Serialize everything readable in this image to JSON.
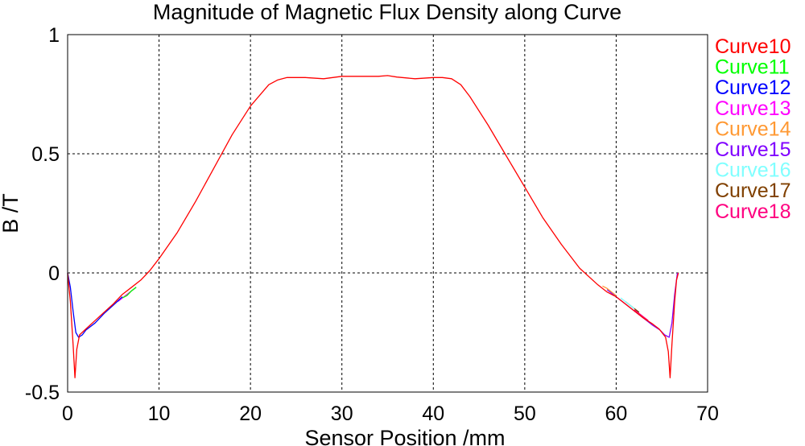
{
  "chart_data": {
    "type": "line",
    "title": "Magnitude of Magnetic Flux Density along Curve",
    "xlabel": "Sensor Position /mm",
    "ylabel": "B /T",
    "xlim": [
      0,
      70
    ],
    "ylim": [
      -0.5,
      1
    ],
    "xticks": [
      0,
      10,
      20,
      30,
      40,
      50,
      60,
      70
    ],
    "yticks": [
      -0.5,
      0,
      0.5,
      1
    ],
    "xtick_labels": [
      "0",
      "10",
      "20",
      "30",
      "40",
      "50",
      "60",
      "70"
    ],
    "ytick_labels": [
      "-0.5",
      "0",
      "0.5",
      "1"
    ],
    "grid": true,
    "legend_position": "right",
    "series": [
      {
        "name": "Curve10",
        "color": "#ff0000",
        "x": [
          0,
          0.3,
          0.6,
          0.8,
          1.0,
          1.3,
          2,
          3,
          4,
          5,
          6,
          7,
          8,
          9,
          10,
          12,
          14,
          16,
          18,
          20,
          22,
          23,
          24,
          25,
          26,
          28,
          30,
          32,
          34,
          35,
          36,
          38,
          40,
          41,
          42,
          43,
          44,
          46,
          48,
          50,
          52,
          54,
          56,
          58,
          59,
          60,
          61,
          62,
          63,
          64,
          64.7,
          65.4,
          65.7,
          65.9,
          66.1,
          66.4,
          66.6,
          66.8
        ],
        "y": [
          0,
          -0.12,
          -0.3,
          -0.44,
          -0.32,
          -0.26,
          -0.235,
          -0.2,
          -0.165,
          -0.13,
          -0.09,
          -0.06,
          -0.03,
          0.01,
          0.06,
          0.17,
          0.3,
          0.44,
          0.58,
          0.7,
          0.79,
          0.81,
          0.82,
          0.82,
          0.82,
          0.815,
          0.825,
          0.825,
          0.825,
          0.828,
          0.822,
          0.815,
          0.82,
          0.82,
          0.815,
          0.79,
          0.74,
          0.62,
          0.49,
          0.36,
          0.23,
          0.12,
          0.02,
          -0.05,
          -0.08,
          -0.1,
          -0.13,
          -0.16,
          -0.19,
          -0.215,
          -0.235,
          -0.27,
          -0.33,
          -0.44,
          -0.3,
          -0.12,
          -0.03,
          0
        ]
      },
      {
        "name": "Curve11",
        "color": "#00ff00",
        "x": [
          6,
          6.5,
          7,
          7.5
        ],
        "y": [
          -0.105,
          -0.095,
          -0.075,
          -0.06
        ]
      },
      {
        "name": "Curve12",
        "color": "#0000ff",
        "x": [
          0,
          0.3,
          0.6,
          0.9,
          1.2,
          1.6,
          2,
          3,
          4,
          5,
          6
        ],
        "y": [
          0,
          -0.06,
          -0.16,
          -0.25,
          -0.27,
          -0.26,
          -0.24,
          -0.21,
          -0.17,
          -0.135,
          -0.1
        ]
      },
      {
        "name": "Curve13",
        "color": "#ff00ff",
        "x": [
          5.5,
          6,
          6.5,
          7,
          7.5
        ],
        "y": [
          -0.12,
          -0.105,
          -0.09,
          -0.075,
          -0.06
        ]
      },
      {
        "name": "Curve14",
        "color": "#ff9933",
        "x": [
          58.5,
          59,
          59.5,
          60
        ],
        "y": [
          -0.055,
          -0.065,
          -0.08,
          -0.095
        ]
      },
      {
        "name": "Curve15",
        "color": "#8000ff",
        "x": [
          59,
          60,
          61,
          62,
          63,
          64,
          64.8,
          65.3,
          65.8,
          66.1,
          66.4,
          66.7
        ],
        "y": [
          -0.07,
          -0.1,
          -0.13,
          -0.16,
          -0.19,
          -0.22,
          -0.24,
          -0.26,
          -0.27,
          -0.21,
          -0.09,
          0
        ]
      },
      {
        "name": "Curve16",
        "color": "#80ffff",
        "x": [
          60.5,
          61,
          61.5,
          62
        ],
        "y": [
          -0.105,
          -0.12,
          -0.135,
          -0.15
        ]
      },
      {
        "name": "Curve17",
        "color": "#804000",
        "x": [
          61,
          61.5,
          62,
          62.5
        ],
        "y": [
          -0.12,
          -0.135,
          -0.15,
          -0.165
        ]
      },
      {
        "name": "Curve18",
        "color": "#ff0080",
        "x": [
          62,
          62.5,
          63,
          63.5
        ],
        "y": [
          -0.155,
          -0.17,
          -0.185,
          -0.2
        ]
      }
    ]
  }
}
